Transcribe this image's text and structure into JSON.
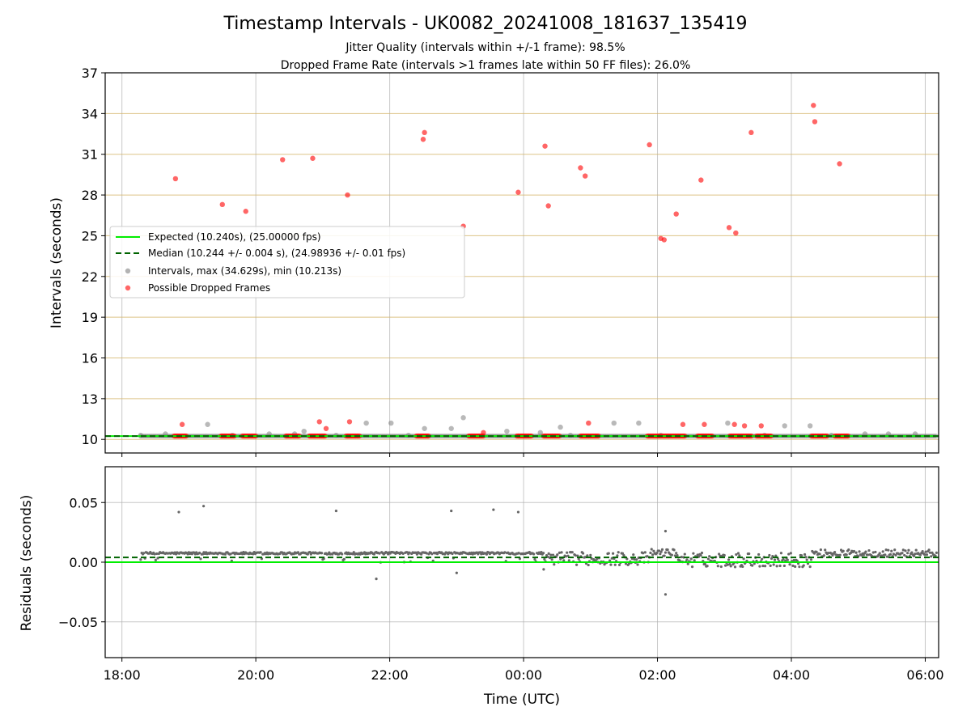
{
  "chart_data": {
    "type": "scatter",
    "title": "Timestamp Intervals - UK0082_20241008_181637_135419",
    "subtitle_lines": [
      "Jitter Quality (intervals within +/-1 frame): 98.5%",
      "Dropped Frame Rate (intervals >1 frames late within 50 FF files): 26.0%"
    ],
    "x_axis": {
      "label": "Time (UTC)",
      "range_hours": [
        -6.25,
        6.2
      ],
      "ticks": [
        {
          "value": -6,
          "label": "18:00"
        },
        {
          "value": -4,
          "label": "20:00"
        },
        {
          "value": -2,
          "label": "22:00"
        },
        {
          "value": 0,
          "label": "00:00"
        },
        {
          "value": 2,
          "label": "02:00"
        },
        {
          "value": 4,
          "label": "04:00"
        },
        {
          "value": 6,
          "label": "06:00"
        }
      ]
    },
    "top_panel": {
      "ylabel": "Intervals (seconds)",
      "ylim": [
        9.0,
        37.0
      ],
      "yticks": [
        10,
        13,
        16,
        19,
        22,
        25,
        28,
        31,
        34,
        37
      ],
      "grid": true,
      "expected_value": 10.24,
      "median_value": 10.244,
      "legend": {
        "placement": "center-left",
        "entries": [
          {
            "label": "Expected (10.240s), (25.00000 fps)",
            "style": "solid-line",
            "color": "#00ee00"
          },
          {
            "label": "Median (10.244 +/- 0.004 s), (24.98936 +/- 0.01 fps)",
            "style": "dashed-line",
            "color": "#006400"
          },
          {
            "label": "Intervals, max (34.629s), min (10.213s)",
            "style": "marker",
            "color": "#808080"
          },
          {
            "label": "Possible Dropped Frames",
            "style": "marker",
            "color": "#ff0000"
          }
        ]
      },
      "gray_points": [
        [
          -5.72,
          10.3
        ],
        [
          -5.35,
          10.4
        ],
        [
          -4.72,
          11.1
        ],
        [
          -4.35,
          10.3
        ],
        [
          -3.8,
          10.4
        ],
        [
          -3.42,
          10.4
        ],
        [
          -3.28,
          10.6
        ],
        [
          -2.8,
          10.3
        ],
        [
          -2.35,
          11.2
        ],
        [
          -1.98,
          11.2
        ],
        [
          -1.72,
          10.3
        ],
        [
          -1.48,
          10.8
        ],
        [
          -1.08,
          10.8
        ],
        [
          -0.9,
          11.6
        ],
        [
          -0.25,
          10.6
        ],
        [
          0.25,
          10.5
        ],
        [
          0.55,
          10.9
        ],
        [
          0.7,
          10.3
        ],
        [
          1.35,
          11.2
        ],
        [
          1.72,
          11.2
        ],
        [
          2.05,
          10.3
        ],
        [
          3.05,
          11.2
        ],
        [
          3.6,
          10.3
        ],
        [
          3.9,
          11.0
        ],
        [
          4.28,
          11.0
        ],
        [
          4.6,
          10.3
        ],
        [
          5.1,
          10.4
        ],
        [
          5.45,
          10.4
        ],
        [
          5.85,
          10.4
        ]
      ],
      "red_points": [
        [
          -5.2,
          29.2
        ],
        [
          -5.1,
          11.1
        ],
        [
          -4.5,
          27.3
        ],
        [
          -4.15,
          26.8
        ],
        [
          -3.6,
          30.6
        ],
        [
          -3.15,
          30.7
        ],
        [
          -3.05,
          11.3
        ],
        [
          -2.95,
          10.8
        ],
        [
          -2.63,
          28.0
        ],
        [
          -2.6,
          11.3
        ],
        [
          -1.5,
          32.1
        ],
        [
          -1.48,
          32.6
        ],
        [
          -0.9,
          25.7
        ],
        [
          -0.6,
          10.5
        ],
        [
          -0.08,
          28.2
        ],
        [
          0.32,
          31.6
        ],
        [
          0.37,
          27.2
        ],
        [
          0.85,
          30.0
        ],
        [
          0.92,
          29.4
        ],
        [
          0.97,
          11.2
        ],
        [
          1.88,
          31.7
        ],
        [
          2.05,
          24.8
        ],
        [
          2.1,
          24.7
        ],
        [
          2.28,
          26.6
        ],
        [
          2.38,
          11.1
        ],
        [
          2.65,
          29.1
        ],
        [
          2.7,
          11.1
        ],
        [
          3.07,
          25.6
        ],
        [
          3.15,
          11.1
        ],
        [
          3.17,
          25.2
        ],
        [
          3.3,
          11.0
        ],
        [
          3.4,
          32.6
        ],
        [
          3.55,
          11.0
        ],
        [
          4.33,
          34.6
        ],
        [
          4.35,
          33.4
        ],
        [
          4.72,
          30.3
        ]
      ],
      "dropped_frame_clusters": [
        [
          -5.22,
          -5.03
        ],
        [
          -4.52,
          -4.32
        ],
        [
          -4.2,
          -4.0
        ],
        [
          -3.55,
          -3.35
        ],
        [
          -3.2,
          -2.95
        ],
        [
          -2.65,
          -2.45
        ],
        [
          -1.6,
          -1.42
        ],
        [
          -0.82,
          -0.6
        ],
        [
          -0.1,
          0.12
        ],
        [
          0.3,
          0.55
        ],
        [
          0.85,
          1.12
        ],
        [
          1.85,
          2.42
        ],
        [
          2.6,
          2.82
        ],
        [
          3.08,
          3.42
        ],
        [
          3.48,
          3.7
        ],
        [
          4.3,
          4.55
        ],
        [
          4.65,
          4.85
        ]
      ]
    },
    "bottom_panel": {
      "ylabel": "Residuals (seconds)",
      "ylim": [
        -0.08,
        0.08
      ],
      "yticks": [
        {
          "value": 0.05,
          "label": "0.05"
        },
        {
          "value": 0.0,
          "label": "0.00"
        },
        {
          "value": -0.05,
          "label": "−0.05"
        }
      ],
      "grid": true,
      "expected_residual": 0.0,
      "median_residual": 0.004,
      "outlier_points": [
        [
          -5.15,
          0.042
        ],
        [
          -4.78,
          0.047
        ],
        [
          -2.8,
          0.043
        ],
        [
          -1.08,
          0.043
        ],
        [
          -0.45,
          0.044
        ],
        [
          -0.08,
          0.042
        ],
        [
          2.12,
          0.026
        ],
        [
          2.12,
          -0.027
        ],
        [
          -2.2,
          -0.014
        ],
        [
          -1.0,
          -0.009
        ],
        [
          0.3,
          -0.006
        ]
      ],
      "point_color": "#808080"
    }
  }
}
